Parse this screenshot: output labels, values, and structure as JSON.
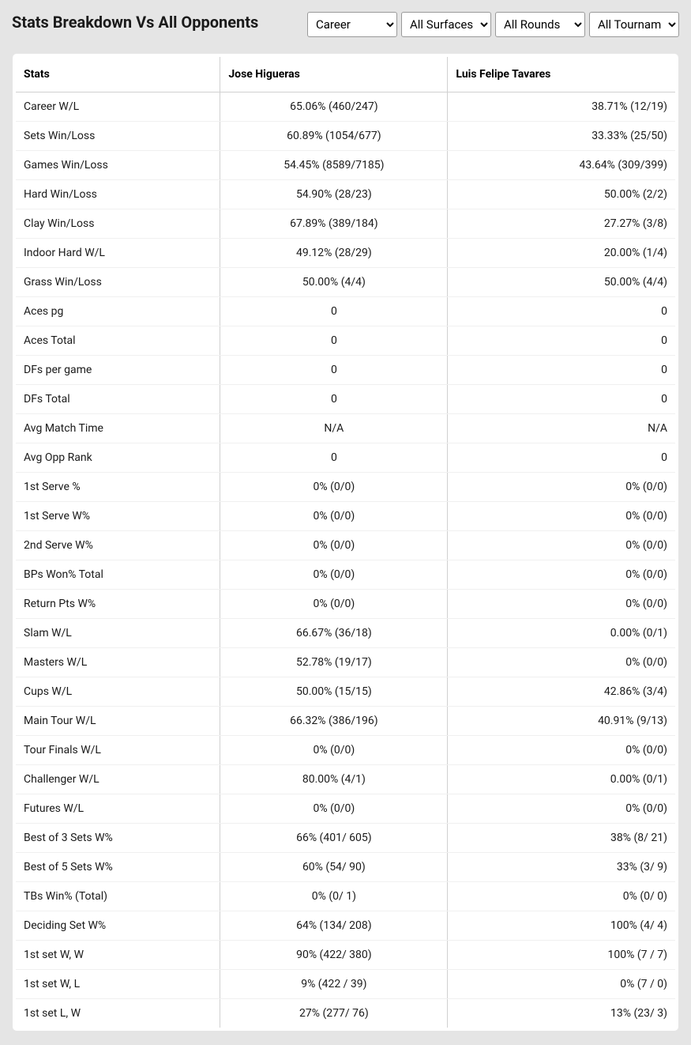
{
  "title": "Stats Breakdown Vs All Opponents",
  "filters": {
    "career": {
      "selected": "Career",
      "options": [
        "Career"
      ]
    },
    "surface": {
      "selected": "All Surfaces",
      "options": [
        "All Surfaces"
      ]
    },
    "round": {
      "selected": "All Rounds",
      "options": [
        "All Rounds"
      ]
    },
    "tournament": {
      "selected": "All Tournaments",
      "options": [
        "All Tournaments"
      ]
    }
  },
  "table": {
    "columns": [
      "Stats",
      "Jose Higueras",
      "Luis Felipe Tavares"
    ],
    "rows": [
      [
        "Career W/L",
        "65.06% (460/247)",
        "38.71% (12/19)"
      ],
      [
        "Sets Win/Loss",
        "60.89% (1054/677)",
        "33.33% (25/50)"
      ],
      [
        "Games Win/Loss",
        "54.45% (8589/7185)",
        "43.64% (309/399)"
      ],
      [
        "Hard Win/Loss",
        "54.90% (28/23)",
        "50.00% (2/2)"
      ],
      [
        "Clay Win/Loss",
        "67.89% (389/184)",
        "27.27% (3/8)"
      ],
      [
        "Indoor Hard W/L",
        "49.12% (28/29)",
        "20.00% (1/4)"
      ],
      [
        "Grass Win/Loss",
        "50.00% (4/4)",
        "50.00% (4/4)"
      ],
      [
        "Aces pg",
        "0",
        "0"
      ],
      [
        "Aces Total",
        "0",
        "0"
      ],
      [
        "DFs per game",
        "0",
        "0"
      ],
      [
        "DFs Total",
        "0",
        "0"
      ],
      [
        "Avg Match Time",
        "N/A",
        "N/A"
      ],
      [
        "Avg Opp Rank",
        "0",
        "0"
      ],
      [
        "1st Serve %",
        "0% (0/0)",
        "0% (0/0)"
      ],
      [
        "1st Serve W%",
        "0% (0/0)",
        "0% (0/0)"
      ],
      [
        "2nd Serve W%",
        "0% (0/0)",
        "0% (0/0)"
      ],
      [
        "BPs Won% Total",
        "0% (0/0)",
        "0% (0/0)"
      ],
      [
        "Return Pts W%",
        "0% (0/0)",
        "0% (0/0)"
      ],
      [
        "Slam W/L",
        "66.67% (36/18)",
        "0.00% (0/1)"
      ],
      [
        "Masters W/L",
        "52.78% (19/17)",
        "0% (0/0)"
      ],
      [
        "Cups W/L",
        "50.00% (15/15)",
        "42.86% (3/4)"
      ],
      [
        "Main Tour W/L",
        "66.32% (386/196)",
        "40.91% (9/13)"
      ],
      [
        "Tour Finals W/L",
        "0% (0/0)",
        "0% (0/0)"
      ],
      [
        "Challenger W/L",
        "80.00% (4/1)",
        "0.00% (0/1)"
      ],
      [
        "Futures W/L",
        "0% (0/0)",
        "0% (0/0)"
      ],
      [
        "Best of 3 Sets W%",
        "66% (401/ 605)",
        "38% (8/ 21)"
      ],
      [
        "Best of 5 Sets W%",
        "60% (54/ 90)",
        "33% (3/ 9)"
      ],
      [
        "TBs Win% (Total)",
        "0% (0/ 1)",
        "0% (0/ 0)"
      ],
      [
        "Deciding Set W%",
        "64% (134/ 208)",
        "100% (4/ 4)"
      ],
      [
        "1st set W, W",
        "90% (422/ 380)",
        "100% (7 / 7)"
      ],
      [
        "1st set W, L",
        "9% (422 / 39)",
        "0% (7 / 0)"
      ],
      [
        "1st set L, W",
        "27% (277/ 76)",
        "13% (23/ 3)"
      ]
    ]
  },
  "style": {
    "background_color": "#e5e5e5",
    "table_bg": "#ffffff",
    "border_color": "#d0d0d0",
    "row_divider": "#f0f0f0",
    "text_color": "#1a1a1a",
    "title_fontsize": 20,
    "cell_fontsize": 14
  }
}
